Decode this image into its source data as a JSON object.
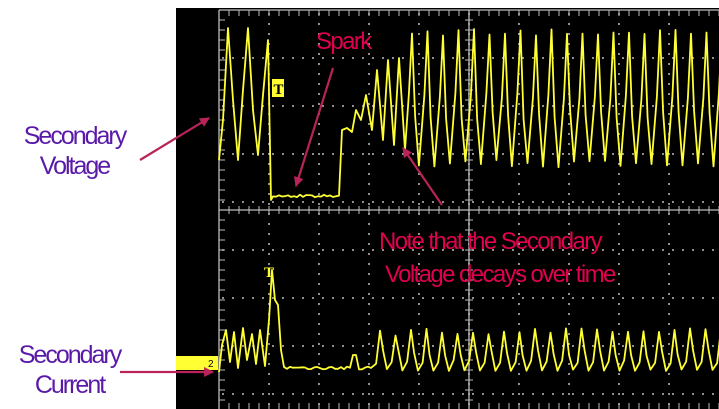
{
  "labels": {
    "secondary_voltage_line1": "Secondary",
    "secondary_voltage_line2": "Voltage",
    "secondary_current_line1": "Secondary",
    "secondary_current_line2": "Current",
    "spark": "Spark",
    "note_line1": "Note that the Secondary",
    "note_line2": "Voltage decays over time",
    "trigger_marker": "T",
    "ground_marker": "2"
  },
  "colors": {
    "screen_background": "#000000",
    "trace": "#ffff33",
    "graticule": "#bdbdbd",
    "annotation_text": "#e0004f",
    "side_label_text": "#5a1aa8",
    "arrow": "#b8245a",
    "page_background": "#ffffff"
  },
  "icons": {
    "trigger_marker": "trigger-t-marker",
    "ground_marker": "channel-2-ground-marker",
    "arrow": "annotation-arrow"
  }
}
